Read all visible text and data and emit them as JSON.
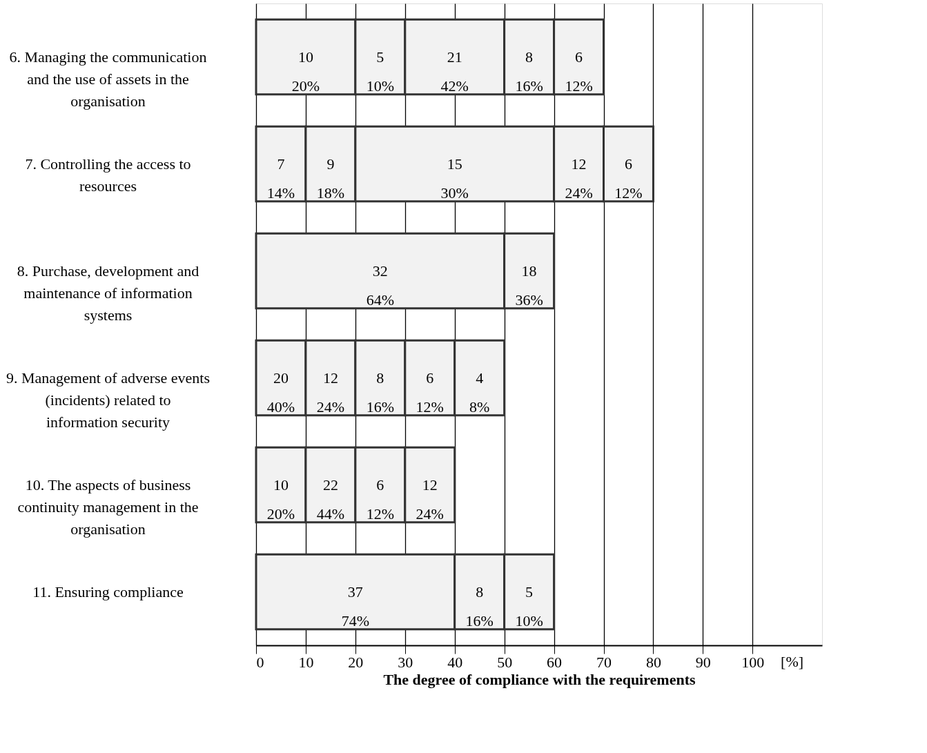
{
  "chart_data": {
    "type": "bar",
    "orientation": "horizontal",
    "stacked": true,
    "xlabel": "The degree of compliance with the requirements",
    "categories": [
      "6. Managing the communication and the use of assets in the organisation",
      "7. Controlling the access to resources",
      "8. Purchase, development and maintenance of information systems",
      "9. Management of adverse events (incidents) related to information security",
      "10. The aspects of business continuity management in the organisation",
      "11. Ensuring compliance"
    ],
    "series": [
      {
        "color": "#f2f2f2",
        "values": [
          20,
          10,
          50,
          10,
          10,
          40
        ]
      },
      {
        "color": "#f2f2f2",
        "values": [
          10,
          10,
          10,
          10,
          10,
          10
        ]
      },
      {
        "color": "#f2f2f2",
        "values": [
          20,
          40,
          null,
          10,
          10,
          10
        ]
      },
      {
        "color": "#f2f2f2",
        "values": [
          10,
          10,
          null,
          10,
          10,
          null
        ]
      },
      {
        "color": "#f2f2f2",
        "values": [
          10,
          10,
          null,
          10,
          null,
          null
        ]
      }
    ],
    "xlim": [
      0,
      114
    ],
    "xticks": [
      0,
      10,
      20,
      30,
      40,
      50,
      60,
      70,
      80,
      90,
      100
    ],
    "grid": "x",
    "legend": false,
    "annotations": [
      "[%]",
      "10\n20%",
      "5\n10%",
      "21\n42%",
      "8\n16%",
      "6\n12%",
      "7\n14%",
      "9\n18%",
      "15\n30%",
      "12\n24%",
      "6\n12%",
      "32\n64%",
      "18\n36%",
      "20\n40%",
      "12\n24%",
      "8\n16%",
      "6\n12%",
      "4\n8%",
      "10\n20%",
      "22\n44%",
      "6\n12%",
      "12\n24%",
      "37\n74%",
      "8\n16%",
      "5\n10%"
    ]
  }
}
